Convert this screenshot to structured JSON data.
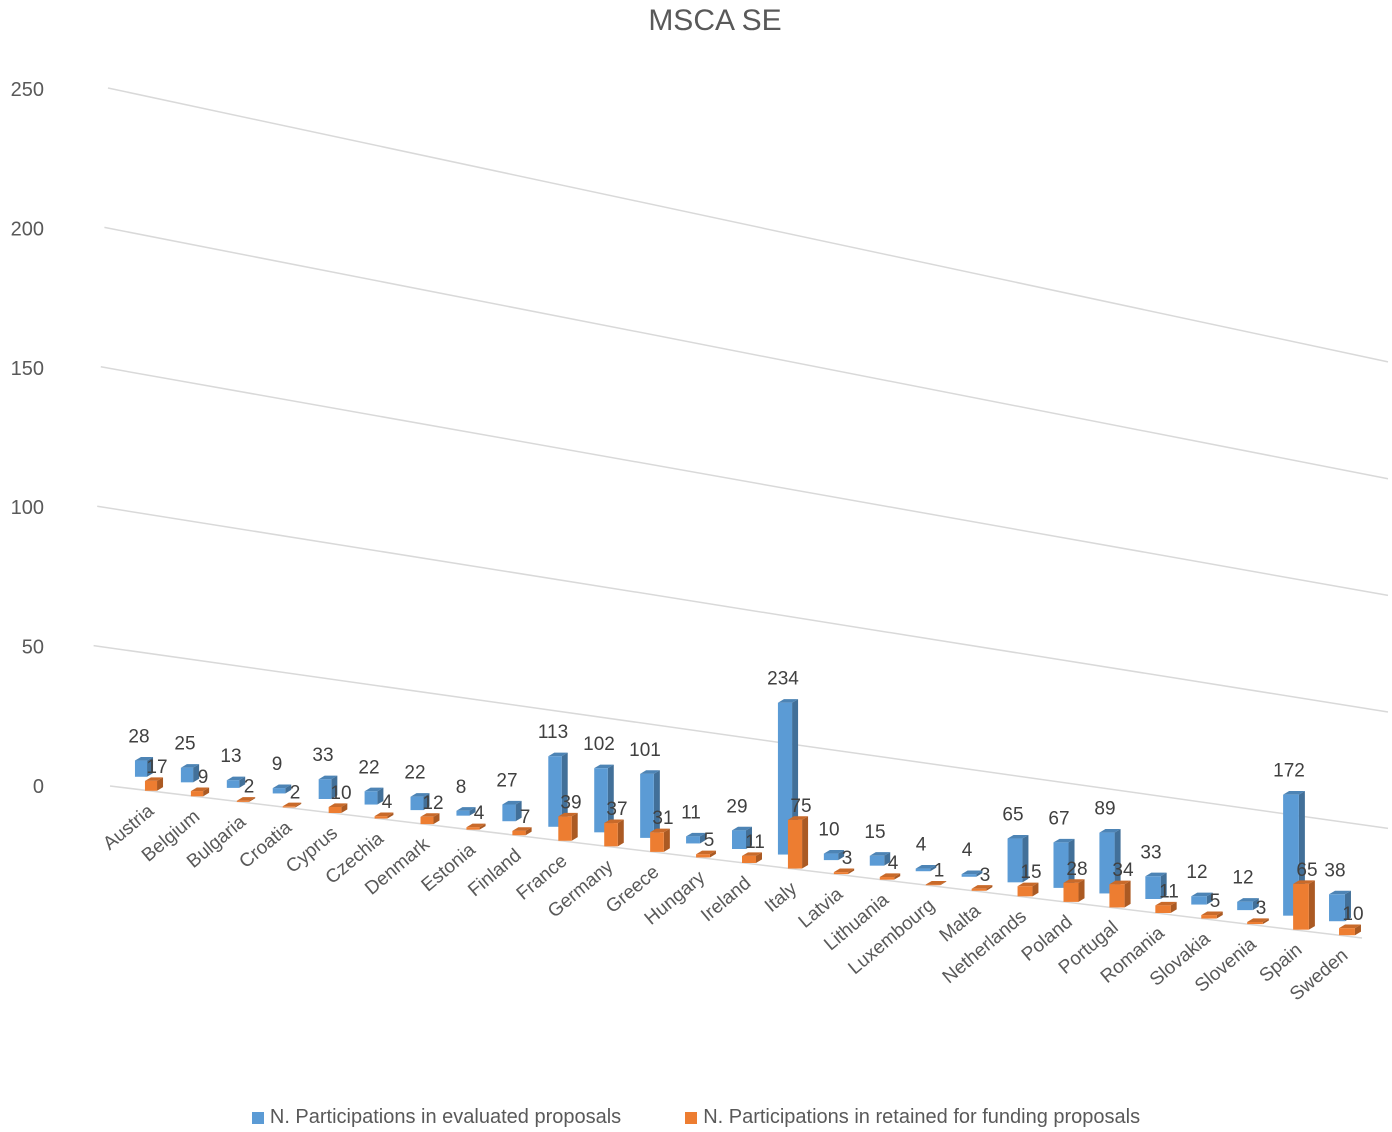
{
  "chart_data": {
    "type": "bar",
    "title": "MSCA SE",
    "categories": [
      "Austria",
      "Belgium",
      "Bulgaria",
      "Croatia",
      "Cyprus",
      "Czechia",
      "Denmark",
      "Estonia",
      "Finland",
      "France",
      "Germany",
      "Greece",
      "Hungary",
      "Ireland",
      "Italy",
      "Latvia",
      "Lithuania",
      "Luxembourg",
      "Malta",
      "Netherlands",
      "Poland",
      "Portugal",
      "Romania",
      "Slovakia",
      "Slovenia",
      "Spain",
      "Sweden"
    ],
    "series": [
      {
        "name": "N. Participations in evaluated proposals",
        "color": "#5B9BD5",
        "values": [
          28,
          25,
          13,
          9,
          33,
          22,
          22,
          8,
          27,
          113,
          102,
          101,
          11,
          29,
          234,
          10,
          15,
          4,
          4,
          65,
          67,
          89,
          33,
          12,
          12,
          172,
          38
        ]
      },
      {
        "name": "N. Participations in retained for funding proposals",
        "color": "#ED7D31",
        "values": [
          17,
          9,
          2,
          2,
          10,
          4,
          12,
          4,
          7,
          39,
          37,
          31,
          5,
          11,
          75,
          3,
          4,
          1,
          3,
          15,
          28,
          34,
          11,
          5,
          3,
          65,
          10
        ]
      }
    ],
    "yticks": [
      0,
      50,
      100,
      150,
      200,
      250
    ],
    "ylim": [
      0,
      250
    ],
    "grid": true,
    "legend_position": "bottom"
  }
}
